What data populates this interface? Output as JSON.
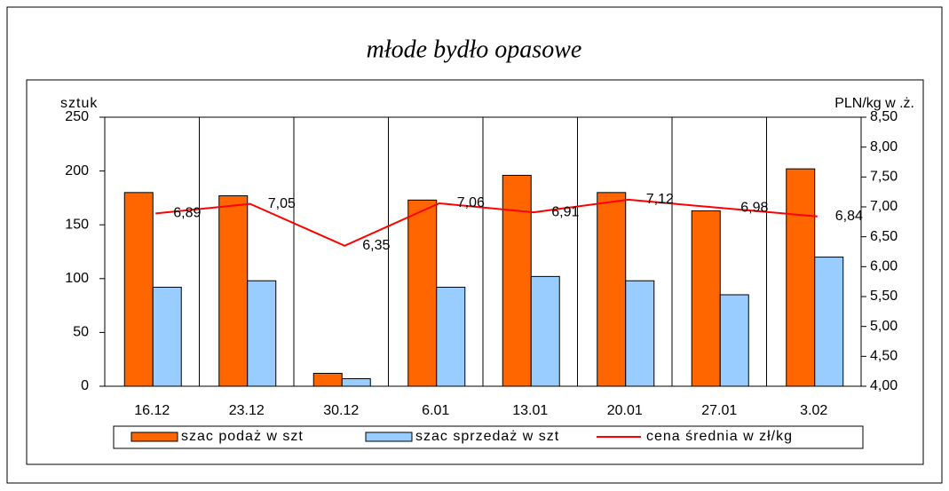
{
  "chart_data": {
    "type": "bar",
    "title": "młode bydło opasowe",
    "ylabel": "sztuk",
    "y2label": "PLN/kg w .ż.",
    "categories": [
      "16.12",
      "23.12",
      "30.12",
      "6.01",
      "13.01",
      "20.01",
      "27.01",
      "3.02"
    ],
    "series": [
      {
        "name": "szac podaż w szt",
        "color": "#ff6600",
        "type": "bar",
        "values": [
          180,
          177,
          12,
          173,
          196,
          180,
          163,
          202
        ]
      },
      {
        "name": "szac sprzedaż w szt",
        "color": "#99ccff",
        "type": "bar",
        "values": [
          92,
          98,
          7,
          92,
          102,
          98,
          85,
          120
        ]
      },
      {
        "name": "cena średnia w zł/kg",
        "color": "#ff0000",
        "type": "line",
        "axis": "y2",
        "values": [
          6.89,
          7.05,
          6.35,
          7.06,
          6.91,
          7.12,
          6.98,
          6.84
        ],
        "value_labels": [
          "6,89",
          "7,05",
          "6,35",
          "7,06",
          "6,91",
          "7,12",
          "6,98",
          "6,84"
        ]
      }
    ],
    "ylim": [
      0,
      250
    ],
    "yticks": [
      0,
      50,
      100,
      150,
      200,
      250
    ],
    "y2lim": [
      4,
      8.5
    ],
    "y2ticks": [
      {
        "value": 4,
        "label": "4,00"
      },
      {
        "value": 4.5,
        "label": "4,50"
      },
      {
        "value": 5,
        "label": "5,00"
      },
      {
        "value": 5.5,
        "label": "5,50"
      },
      {
        "value": 6,
        "label": "6,00"
      },
      {
        "value": 6.5,
        "label": "6,50"
      },
      {
        "value": 7,
        "label": "7,00"
      },
      {
        "value": 7.5,
        "label": "7,50"
      },
      {
        "value": 8,
        "label": "8,00"
      },
      {
        "value": 8.5,
        "label": "8,50"
      }
    ],
    "grid": "x",
    "legend": "bottom"
  }
}
